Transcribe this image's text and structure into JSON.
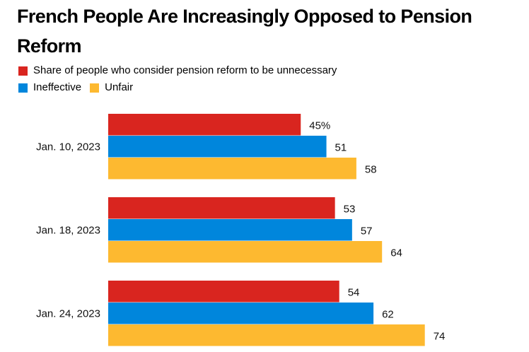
{
  "chart_data": {
    "type": "bar",
    "orientation": "horizontal",
    "title": "French People Are Increasingly Opposed to Pension Reform",
    "xlabel": "",
    "ylabel": "",
    "unit": "%",
    "categories": [
      "Jan. 10, 2023",
      "Jan. 18, 2023",
      "Jan. 24, 2023"
    ],
    "series": [
      {
        "name": "Share of people who consider pension reform to be unnecessary",
        "color": "#d9251f",
        "values": [
          45,
          53,
          54
        ]
      },
      {
        "name": "Ineffective",
        "color": "#0086dc",
        "values": [
          51,
          57,
          62
        ]
      },
      {
        "name": "Unfair",
        "color": "#fdb930",
        "values": [
          58,
          64,
          74
        ]
      }
    ],
    "value_labels": [
      [
        "45%",
        "53",
        "54"
      ],
      [
        "51",
        "57",
        "62"
      ],
      [
        "58",
        "64",
        "74"
      ]
    ],
    "xlim": [
      0,
      100
    ],
    "grid": false,
    "legend_position": "top-left"
  }
}
